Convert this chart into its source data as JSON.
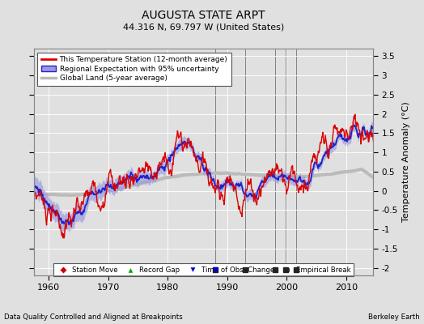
{
  "title": "AUGUSTA STATE ARPT",
  "subtitle": "44.316 N, 69.797 W (United States)",
  "ylabel": "Temperature Anomaly (°C)",
  "xlabel_left": "Data Quality Controlled and Aligned at Breakpoints",
  "xlabel_right": "Berkeley Earth",
  "ylim": [
    -2.2,
    3.7
  ],
  "xlim": [
    1957.5,
    2014.5
  ],
  "yticks": [
    -2,
    -1.5,
    -1,
    -0.5,
    0,
    0.5,
    1,
    1.5,
    2,
    2.5,
    3,
    3.5
  ],
  "xticks": [
    1960,
    1970,
    1980,
    1990,
    2000,
    2010
  ],
  "bg_color": "#e0e0e0",
  "plot_bg_color": "#e0e0e0",
  "station_color": "#dd0000",
  "regional_color": "#2222cc",
  "regional_fill_color": "#9999dd",
  "global_color": "#bbbbbb",
  "station_move_color": "#cc0000",
  "record_gap_color": "#00aa00",
  "time_obs_color": "#0000cc",
  "empirical_break_color": "#222222",
  "empirical_break_years": [
    1988.0,
    1993.0,
    1998.0,
    1999.8,
    2001.5
  ],
  "time_obs_change_years": [
    1988.0
  ],
  "record_gap_years": [],
  "station_move_years": []
}
